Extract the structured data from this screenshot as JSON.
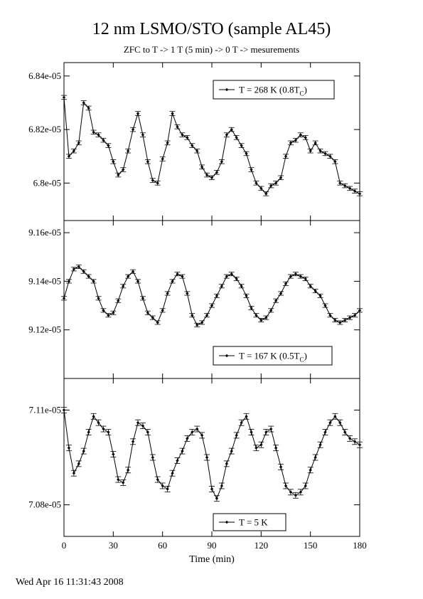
{
  "title": "12 nm LSMO/STO (sample AL45)",
  "subtitle": "ZFC to T -> 1 T (5 min) -> 0 T -> mesurements",
  "timestamp": "Wed Apr 16 11:31:43 2008",
  "chart_data": {
    "type": "line",
    "xlabel": "Time (min)",
    "xlim": [
      0,
      180
    ],
    "xticks": [
      0,
      30,
      60,
      90,
      120,
      150,
      180
    ],
    "panels": [
      {
        "legend": {
          "main": "T = 268 K (0.8T",
          "sub": "C",
          "close": ")"
        },
        "legend_position": "top-right",
        "ylim": [
          6.786e-05,
          6.845e-05
        ],
        "yticks": [
          6.8e-05,
          6.82e-05,
          6.84e-05
        ],
        "ytick_labels": [
          "6.8e-05",
          "6.82e-05",
          "6.84e-05"
        ],
        "err": 7.5e-09,
        "series": [
          {
            "t": 0,
            "v": 6.832e-05
          },
          {
            "t": 3,
            "v": 6.81e-05
          },
          {
            "t": 6,
            "v": 6.812e-05
          },
          {
            "t": 9,
            "v": 6.815e-05
          },
          {
            "t": 12,
            "v": 6.83e-05
          },
          {
            "t": 15,
            "v": 6.828e-05
          },
          {
            "t": 18,
            "v": 6.819e-05
          },
          {
            "t": 21,
            "v": 6.818e-05
          },
          {
            "t": 24,
            "v": 6.816e-05
          },
          {
            "t": 27,
            "v": 6.814e-05
          },
          {
            "t": 30,
            "v": 6.808e-05
          },
          {
            "t": 33,
            "v": 6.803e-05
          },
          {
            "t": 36,
            "v": 6.805e-05
          },
          {
            "t": 39,
            "v": 6.812e-05
          },
          {
            "t": 42,
            "v": 6.82e-05
          },
          {
            "t": 45,
            "v": 6.826e-05
          },
          {
            "t": 48,
            "v": 6.818e-05
          },
          {
            "t": 51,
            "v": 6.808e-05
          },
          {
            "t": 54,
            "v": 6.801e-05
          },
          {
            "t": 57,
            "v": 6.8e-05
          },
          {
            "t": 60,
            "v": 6.809e-05
          },
          {
            "t": 63,
            "v": 6.815e-05
          },
          {
            "t": 66,
            "v": 6.826e-05
          },
          {
            "t": 69,
            "v": 6.821e-05
          },
          {
            "t": 72,
            "v": 6.818e-05
          },
          {
            "t": 75,
            "v": 6.817e-05
          },
          {
            "t": 78,
            "v": 6.814e-05
          },
          {
            "t": 81,
            "v": 6.812e-05
          },
          {
            "t": 84,
            "v": 6.806e-05
          },
          {
            "t": 87,
            "v": 6.803e-05
          },
          {
            "t": 90,
            "v": 6.802e-05
          },
          {
            "t": 93,
            "v": 6.804e-05
          },
          {
            "t": 96,
            "v": 6.808e-05
          },
          {
            "t": 99,
            "v": 6.818e-05
          },
          {
            "t": 102,
            "v": 6.82e-05
          },
          {
            "t": 105,
            "v": 6.817e-05
          },
          {
            "t": 108,
            "v": 6.814e-05
          },
          {
            "t": 111,
            "v": 6.811e-05
          },
          {
            "t": 114,
            "v": 6.805e-05
          },
          {
            "t": 117,
            "v": 6.8e-05
          },
          {
            "t": 120,
            "v": 6.798e-05
          },
          {
            "t": 123,
            "v": 6.796e-05
          },
          {
            "t": 126,
            "v": 6.799e-05
          },
          {
            "t": 129,
            "v": 6.8e-05
          },
          {
            "t": 132,
            "v": 6.802e-05
          },
          {
            "t": 135,
            "v": 6.81e-05
          },
          {
            "t": 138,
            "v": 6.815e-05
          },
          {
            "t": 141,
            "v": 6.816e-05
          },
          {
            "t": 144,
            "v": 6.818e-05
          },
          {
            "t": 147,
            "v": 6.817e-05
          },
          {
            "t": 150,
            "v": 6.812e-05
          },
          {
            "t": 153,
            "v": 6.815e-05
          },
          {
            "t": 156,
            "v": 6.812e-05
          },
          {
            "t": 159,
            "v": 6.811e-05
          },
          {
            "t": 162,
            "v": 6.81e-05
          },
          {
            "t": 165,
            "v": 6.808e-05
          },
          {
            "t": 168,
            "v": 6.8e-05
          },
          {
            "t": 171,
            "v": 6.799e-05
          },
          {
            "t": 174,
            "v": 6.798e-05
          },
          {
            "t": 177,
            "v": 6.797e-05
          },
          {
            "t": 180,
            "v": 6.796e-05
          }
        ]
      },
      {
        "legend": {
          "main": "T = 167 K (0.5T",
          "sub": "C",
          "close": ")"
        },
        "legend_position": "bottom-right",
        "ylim": [
          9.1e-05,
          9.165e-05
        ],
        "yticks": [
          9.12e-05,
          9.14e-05,
          9.16e-05
        ],
        "ytick_labels": [
          "9.12e-05",
          "9.14e-05",
          "9.16e-05"
        ],
        "err": 7.5e-09,
        "series": [
          {
            "t": 0,
            "v": 9.133e-05
          },
          {
            "t": 3,
            "v": 9.14e-05
          },
          {
            "t": 6,
            "v": 9.145e-05
          },
          {
            "t": 9,
            "v": 9.146e-05
          },
          {
            "t": 12,
            "v": 9.144e-05
          },
          {
            "t": 15,
            "v": 9.142e-05
          },
          {
            "t": 18,
            "v": 9.14e-05
          },
          {
            "t": 21,
            "v": 9.133e-05
          },
          {
            "t": 24,
            "v": 9.128e-05
          },
          {
            "t": 27,
            "v": 9.126e-05
          },
          {
            "t": 30,
            "v": 9.127e-05
          },
          {
            "t": 33,
            "v": 9.132e-05
          },
          {
            "t": 36,
            "v": 9.138e-05
          },
          {
            "t": 39,
            "v": 9.142e-05
          },
          {
            "t": 42,
            "v": 9.144e-05
          },
          {
            "t": 45,
            "v": 9.14e-05
          },
          {
            "t": 48,
            "v": 9.133e-05
          },
          {
            "t": 51,
            "v": 9.127e-05
          },
          {
            "t": 54,
            "v": 9.125e-05
          },
          {
            "t": 57,
            "v": 9.123e-05
          },
          {
            "t": 60,
            "v": 9.128e-05
          },
          {
            "t": 63,
            "v": 9.135e-05
          },
          {
            "t": 66,
            "v": 9.14e-05
          },
          {
            "t": 69,
            "v": 9.143e-05
          },
          {
            "t": 72,
            "v": 9.142e-05
          },
          {
            "t": 75,
            "v": 9.135e-05
          },
          {
            "t": 78,
            "v": 9.126e-05
          },
          {
            "t": 81,
            "v": 9.122e-05
          },
          {
            "t": 84,
            "v": 9.123e-05
          },
          {
            "t": 87,
            "v": 9.126e-05
          },
          {
            "t": 90,
            "v": 9.13e-05
          },
          {
            "t": 93,
            "v": 9.134e-05
          },
          {
            "t": 96,
            "v": 9.138e-05
          },
          {
            "t": 99,
            "v": 9.142e-05
          },
          {
            "t": 102,
            "v": 9.143e-05
          },
          {
            "t": 105,
            "v": 9.141e-05
          },
          {
            "t": 108,
            "v": 9.138e-05
          },
          {
            "t": 111,
            "v": 9.134e-05
          },
          {
            "t": 114,
            "v": 9.129e-05
          },
          {
            "t": 117,
            "v": 9.126e-05
          },
          {
            "t": 120,
            "v": 9.124e-05
          },
          {
            "t": 123,
            "v": 9.125e-05
          },
          {
            "t": 126,
            "v": 9.128e-05
          },
          {
            "t": 129,
            "v": 9.132e-05
          },
          {
            "t": 132,
            "v": 9.135e-05
          },
          {
            "t": 135,
            "v": 9.139e-05
          },
          {
            "t": 138,
            "v": 9.142e-05
          },
          {
            "t": 141,
            "v": 9.143e-05
          },
          {
            "t": 144,
            "v": 9.142e-05
          },
          {
            "t": 147,
            "v": 9.141e-05
          },
          {
            "t": 150,
            "v": 9.138e-05
          },
          {
            "t": 153,
            "v": 9.136e-05
          },
          {
            "t": 156,
            "v": 9.134e-05
          },
          {
            "t": 159,
            "v": 9.13e-05
          },
          {
            "t": 162,
            "v": 9.126e-05
          },
          {
            "t": 165,
            "v": 9.124e-05
          },
          {
            "t": 168,
            "v": 9.123e-05
          },
          {
            "t": 171,
            "v": 9.124e-05
          },
          {
            "t": 174,
            "v": 9.125e-05
          },
          {
            "t": 177,
            "v": 9.126e-05
          },
          {
            "t": 180,
            "v": 9.128e-05
          }
        ]
      },
      {
        "legend": {
          "main": "T = 5 K",
          "sub": "",
          "close": ""
        },
        "legend_position": "bottom-right",
        "ylim": [
          7.07e-05,
          7.12e-05
        ],
        "yticks": [
          7.08e-05,
          7.11e-05
        ],
        "ytick_labels": [
          "7.08e-05",
          "7.11e-05"
        ],
        "err": 9e-09,
        "series": [
          {
            "t": 0,
            "v": 7.11e-05
          },
          {
            "t": 3,
            "v": 7.098e-05
          },
          {
            "t": 6,
            "v": 7.09e-05
          },
          {
            "t": 9,
            "v": 7.093e-05
          },
          {
            "t": 12,
            "v": 7.097e-05
          },
          {
            "t": 15,
            "v": 7.103e-05
          },
          {
            "t": 18,
            "v": 7.108e-05
          },
          {
            "t": 21,
            "v": 7.106e-05
          },
          {
            "t": 24,
            "v": 7.104e-05
          },
          {
            "t": 27,
            "v": 7.103e-05
          },
          {
            "t": 30,
            "v": 7.096e-05
          },
          {
            "t": 33,
            "v": 7.088e-05
          },
          {
            "t": 36,
            "v": 7.087e-05
          },
          {
            "t": 39,
            "v": 7.091e-05
          },
          {
            "t": 42,
            "v": 7.1e-05
          },
          {
            "t": 45,
            "v": 7.106e-05
          },
          {
            "t": 48,
            "v": 7.105e-05
          },
          {
            "t": 51,
            "v": 7.103e-05
          },
          {
            "t": 54,
            "v": 7.095e-05
          },
          {
            "t": 57,
            "v": 7.088e-05
          },
          {
            "t": 60,
            "v": 7.086e-05
          },
          {
            "t": 63,
            "v": 7.085e-05
          },
          {
            "t": 66,
            "v": 7.09e-05
          },
          {
            "t": 69,
            "v": 7.094e-05
          },
          {
            "t": 72,
            "v": 7.097e-05
          },
          {
            "t": 75,
            "v": 7.101e-05
          },
          {
            "t": 78,
            "v": 7.103e-05
          },
          {
            "t": 81,
            "v": 7.104e-05
          },
          {
            "t": 84,
            "v": 7.102e-05
          },
          {
            "t": 87,
            "v": 7.095e-05
          },
          {
            "t": 90,
            "v": 7.085e-05
          },
          {
            "t": 93,
            "v": 7.082e-05
          },
          {
            "t": 96,
            "v": 7.086e-05
          },
          {
            "t": 99,
            "v": 7.093e-05
          },
          {
            "t": 102,
            "v": 7.097e-05
          },
          {
            "t": 105,
            "v": 7.102e-05
          },
          {
            "t": 108,
            "v": 7.106e-05
          },
          {
            "t": 111,
            "v": 7.108e-05
          },
          {
            "t": 114,
            "v": 7.103e-05
          },
          {
            "t": 117,
            "v": 7.098e-05
          },
          {
            "t": 120,
            "v": 7.099e-05
          },
          {
            "t": 123,
            "v": 7.103e-05
          },
          {
            "t": 126,
            "v": 7.104e-05
          },
          {
            "t": 129,
            "v": 7.098e-05
          },
          {
            "t": 132,
            "v": 7.092e-05
          },
          {
            "t": 135,
            "v": 7.086e-05
          },
          {
            "t": 138,
            "v": 7.084e-05
          },
          {
            "t": 141,
            "v": 7.083e-05
          },
          {
            "t": 144,
            "v": 7.084e-05
          },
          {
            "t": 147,
            "v": 7.086e-05
          },
          {
            "t": 150,
            "v": 7.091e-05
          },
          {
            "t": 153,
            "v": 7.095e-05
          },
          {
            "t": 156,
            "v": 7.099e-05
          },
          {
            "t": 159,
            "v": 7.103e-05
          },
          {
            "t": 162,
            "v": 7.106e-05
          },
          {
            "t": 165,
            "v": 7.108e-05
          },
          {
            "t": 168,
            "v": 7.106e-05
          },
          {
            "t": 171,
            "v": 7.103e-05
          },
          {
            "t": 174,
            "v": 7.101e-05
          },
          {
            "t": 177,
            "v": 7.1e-05
          },
          {
            "t": 180,
            "v": 7.099e-05
          }
        ]
      }
    ]
  }
}
